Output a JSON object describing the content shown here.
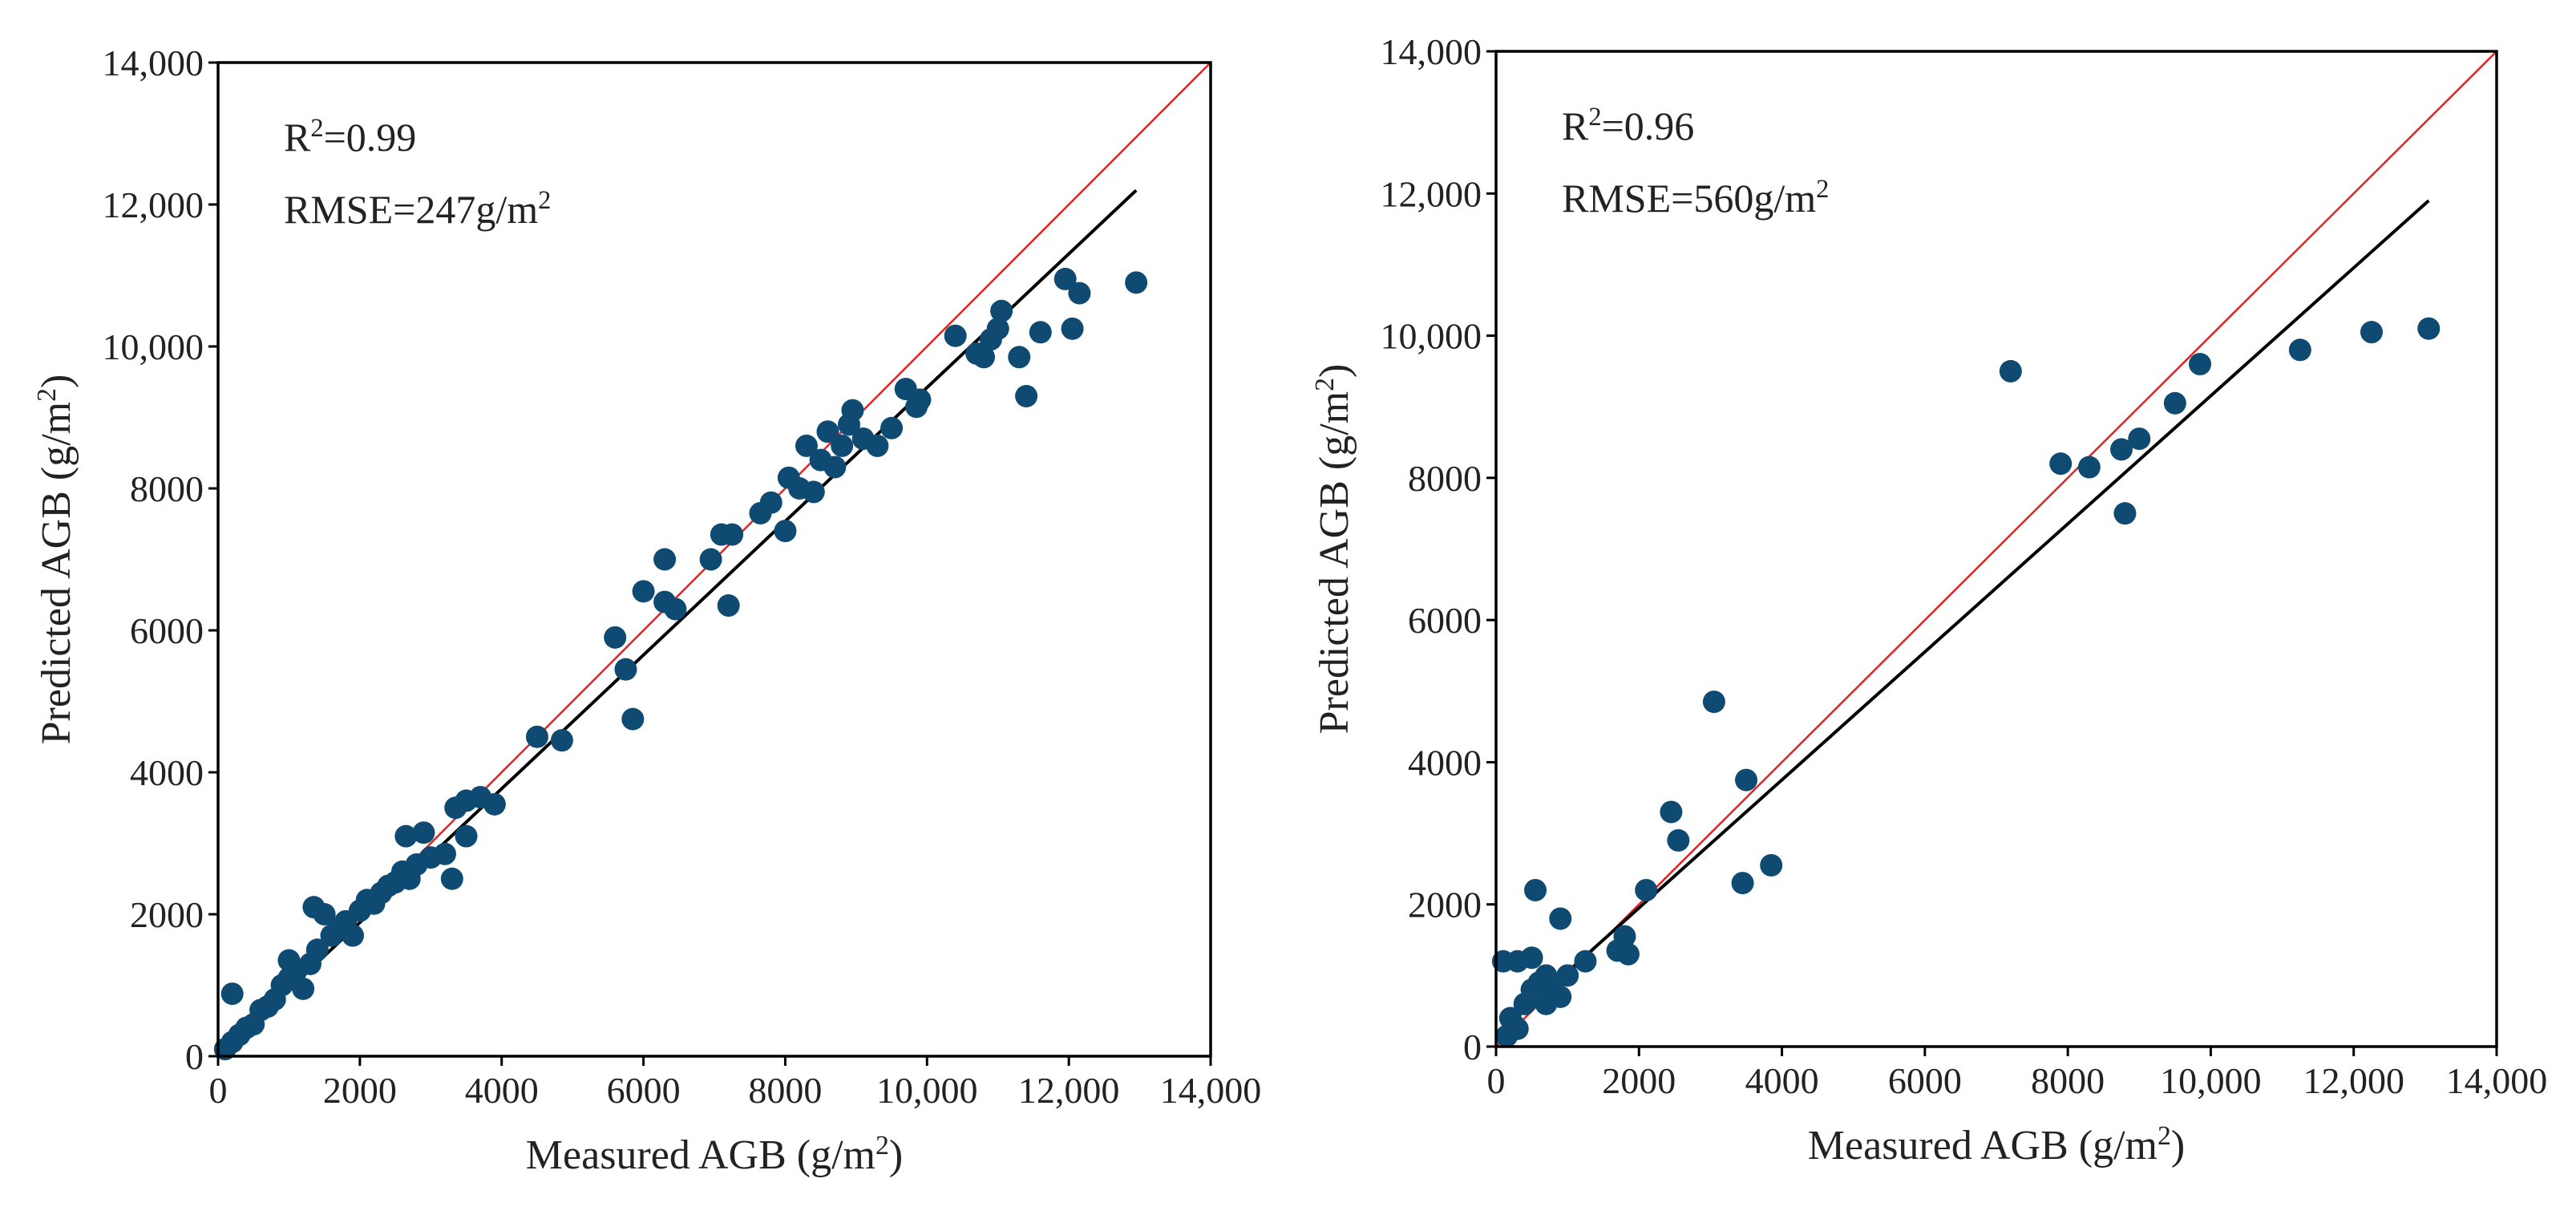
{
  "chart_data": [
    {
      "type": "scatter",
      "xlabel": [
        {
          "text": "Measured AGB (g/m"
        },
        {
          "text": "2",
          "sup": true
        },
        {
          "text": ")"
        }
      ],
      "ylabel": [
        {
          "text": "Predicted AGB (g/m"
        },
        {
          "text": "2",
          "sup": true
        },
        {
          "text": ")"
        }
      ],
      "annotations": [
        [
          {
            "text": "R"
          },
          {
            "text": "2",
            "sup": true
          },
          {
            "text": "=0.99"
          }
        ],
        [
          {
            "text": "RMSE=247g/m"
          },
          {
            "text": "2",
            "sup": true
          }
        ]
      ],
      "xlim": [
        0,
        14000
      ],
      "ylim": [
        0,
        14000
      ],
      "xticks": [
        0,
        2000,
        4000,
        6000,
        8000,
        {
          "value": 10000,
          "label": "10,000"
        },
        {
          "value": 12000,
          "label": "12,000"
        },
        {
          "value": 14000,
          "label": "14,000"
        }
      ],
      "yticks": [
        0,
        2000,
        4000,
        6000,
        8000,
        {
          "value": 10000,
          "label": "10,000"
        },
        {
          "value": 12000,
          "label": "12,000"
        },
        {
          "value": 14000,
          "label": "14,000"
        }
      ],
      "lines": [
        {
          "color": "#e02424",
          "x": [
            0,
            14000
          ],
          "values": [
            0,
            14000
          ]
        },
        {
          "color": "#000000",
          "x": [
            0,
            12950
          ],
          "values": [
            0,
            12200
          ]
        }
      ],
      "series": [
        {
          "color": "#0e4a71",
          "x": [
            200,
            100,
            200,
            300,
            400,
            500,
            600,
            700,
            800,
            900,
            1000,
            1000,
            1100,
            1200,
            1300,
            1400,
            1350,
            1500,
            1600,
            1700,
            1800,
            1900,
            2000,
            2100,
            2200,
            2300,
            2400,
            2500,
            2600,
            2650,
            2700,
            2800,
            2900,
            3000,
            3200,
            3300,
            3350,
            3500,
            3500,
            3700,
            3900,
            4500,
            4850,
            5600,
            5750,
            5850,
            6000,
            6300,
            6300,
            6450,
            6950,
            7100,
            7250,
            7200,
            7650,
            7800,
            8000,
            8050,
            8200,
            8300,
            8400,
            8500,
            8600,
            8700,
            8800,
            8900,
            8950,
            9100,
            9300,
            9500,
            9700,
            9850,
            9900,
            10400,
            10700,
            10800,
            10900,
            11050,
            11000,
            11300,
            11400,
            11600,
            11950,
            12050,
            12150,
            12950
          ],
          "values": [
            880,
            100,
            200,
            300,
            400,
            450,
            650,
            700,
            800,
            1000,
            1100,
            1350,
            1200,
            950,
            1300,
            1500,
            2100,
            2000,
            1700,
            1800,
            1900,
            1700,
            2050,
            2200,
            2150,
            2300,
            2400,
            2450,
            2600,
            3100,
            2500,
            2700,
            3150,
            2800,
            2850,
            2500,
            3500,
            3600,
            3100,
            3650,
            3550,
            4500,
            4450,
            5900,
            5450,
            4750,
            6550,
            7000,
            6400,
            6300,
            7000,
            7350,
            7350,
            6350,
            7650,
            7800,
            7400,
            8150,
            8000,
            8600,
            7950,
            8400,
            8800,
            8300,
            8600,
            8900,
            9100,
            8700,
            8600,
            8850,
            9400,
            9150,
            9250,
            10150,
            9900,
            9850,
            10100,
            10500,
            10250,
            9850,
            9300,
            10200,
            10950,
            10250,
            10750,
            10900
          ]
        }
      ]
    },
    {
      "type": "scatter",
      "xlabel": [
        {
          "text": "Measured AGB (g/m"
        },
        {
          "text": "2",
          "sup": true
        },
        {
          "text": ")"
        }
      ],
      "ylabel": [
        {
          "text": "Predicted AGB (g/m"
        },
        {
          "text": "2",
          "sup": true
        },
        {
          "text": ")"
        }
      ],
      "annotations": [
        [
          {
            "text": "R"
          },
          {
            "text": "2",
            "sup": true
          },
          {
            "text": "=0.96"
          }
        ],
        [
          {
            "text": "RMSE=560g/m"
          },
          {
            "text": "2",
            "sup": true
          }
        ]
      ],
      "xlim": [
        0,
        14000
      ],
      "ylim": [
        0,
        14000
      ],
      "xticks": [
        0,
        2000,
        4000,
        6000,
        8000,
        {
          "value": 10000,
          "label": "10,000"
        },
        {
          "value": 12000,
          "label": "12,000"
        },
        {
          "value": 14000,
          "label": "14,000"
        }
      ],
      "yticks": [
        0,
        2000,
        4000,
        6000,
        8000,
        {
          "value": 10000,
          "label": "10,000"
        },
        {
          "value": 12000,
          "label": "12,000"
        },
        {
          "value": 14000,
          "label": "14,000"
        }
      ],
      "lines": [
        {
          "color": "#e02424",
          "x": [
            0,
            14000
          ],
          "values": [
            0,
            14000
          ]
        },
        {
          "color": "#000000",
          "x": [
            0,
            13050
          ],
          "values": [
            150,
            11900
          ]
        }
      ],
      "series": [
        {
          "color": "#0e4a71",
          "x": [
            100,
            300,
            500,
            550,
            600,
            700,
            800,
            900,
            900,
            1000,
            200,
            300,
            400,
            150,
            250,
            500,
            700,
            1250,
            1700,
            1800,
            1850,
            2100,
            2450,
            2550,
            3050,
            3450,
            3500,
            3850,
            7200,
            7900,
            8300,
            8750,
            8800,
            9000,
            9500,
            9850,
            11250,
            12250,
            13050
          ],
          "values": [
            1200,
            1200,
            1250,
            2200,
            900,
            1000,
            800,
            1800,
            700,
            1000,
            400,
            250,
            600,
            150,
            300,
            800,
            600,
            1200,
            1350,
            1550,
            1300,
            2200,
            3300,
            2900,
            4850,
            2300,
            3750,
            2550,
            9500,
            8200,
            8150,
            8400,
            7500,
            8550,
            9050,
            9600,
            9800,
            10050,
            10100
          ]
        }
      ]
    }
  ]
}
